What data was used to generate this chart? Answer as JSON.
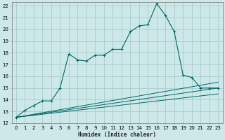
{
  "xlabel": "Humidex (Indice chaleur)",
  "bg_color": "#cce8e8",
  "grid_color": "#aacccc",
  "line_color": "#006666",
  "xlim": [
    -0.5,
    23.5
  ],
  "ylim": [
    12,
    22.3
  ],
  "xticks": [
    0,
    1,
    2,
    3,
    4,
    5,
    6,
    7,
    8,
    9,
    10,
    11,
    12,
    13,
    14,
    15,
    16,
    17,
    18,
    19,
    20,
    21,
    22,
    23
  ],
  "yticks": [
    12,
    13,
    14,
    15,
    16,
    17,
    18,
    19,
    20,
    21,
    22
  ],
  "main_x": [
    0,
    1,
    2,
    3,
    4,
    5,
    6,
    7,
    8,
    9,
    10,
    11,
    12,
    13,
    14,
    15,
    16,
    17,
    18,
    19,
    20,
    21,
    22,
    23
  ],
  "main_y": [
    12.5,
    13.1,
    13.5,
    13.9,
    13.9,
    15.0,
    17.9,
    17.4,
    17.3,
    17.8,
    17.8,
    18.3,
    18.3,
    19.8,
    20.3,
    20.4,
    22.2,
    21.2,
    19.8,
    16.1,
    15.9,
    15.0,
    15.0,
    15.0
  ],
  "line2_x": [
    0,
    23
  ],
  "line2_y": [
    12.5,
    15.5
  ],
  "line3_x": [
    0,
    23
  ],
  "line3_y": [
    12.5,
    15.0
  ],
  "line4_x": [
    0,
    23
  ],
  "line4_y": [
    12.5,
    14.5
  ]
}
